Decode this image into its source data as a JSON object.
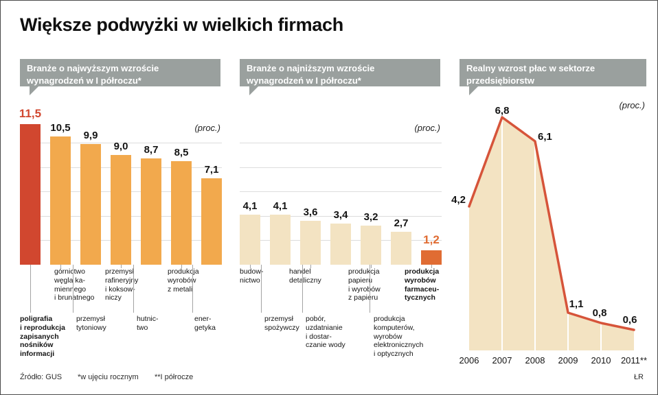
{
  "page": {
    "title": "Większe podwyżki w wielkich firmach"
  },
  "footer": {
    "source": "Źródło: GUS",
    "note_yearly": "*w ujęciu rocznym",
    "note_half": "**I półrocze",
    "credit": "ŁR"
  },
  "colors": {
    "badge_bg": "#9aa09e",
    "bar_orange": "#f2a94d",
    "bar_red": "#d1472f",
    "bar_cream": "#f3e3c2",
    "bar_highlight_orange": "#e06c33",
    "line_red": "#d6543a",
    "area_cream": "#f3e3c2",
    "grid": "#dcdcdc",
    "leader": "#a3a3a3"
  },
  "chart_data": [
    {
      "type": "bar",
      "title": "Branże o najwyższym wzroście wynagrodzeń w I półroczu*",
      "unit": "(proc.)",
      "categories": [
        "poligrafia i reprodukcja zapisanych nośników informacji",
        "górnictwo węgla kamiennego i brunatnego",
        "przemysł tytoniowy",
        "przemysł rafineryjny i koksowniczy",
        "hutnictwo",
        "produkcja wyrobów z metali",
        "energetyka"
      ],
      "display_labels": [
        "poligrafia\ni reprodukcja\nzapisanych\nnośników\ninformacji",
        "górnictwo\nwęgla ka-\nmiennego\ni brunatnego",
        "przemysł\ntytoniowy",
        "przemysł\nrafineryjny\ni koksow-\nniczy",
        "hutnic-\ntwo",
        "produkcja\nwyrobów\nz metali",
        "ener-\ngetyka"
      ],
      "values": [
        11.5,
        10.5,
        9.9,
        9.0,
        8.7,
        8.5,
        7.1
      ],
      "value_labels": [
        "11,5",
        "10,5",
        "9,9",
        "9,0",
        "8,7",
        "8,5",
        "7,1"
      ],
      "highlight_index": 0,
      "ylim": [
        0,
        12
      ],
      "grid_step": 2
    },
    {
      "type": "bar",
      "title": "Branże o najniższym wzroście wynagrodzeń w I półroczu*",
      "unit": "(proc.)",
      "categories": [
        "budownictwo",
        "przemysł spożywczy",
        "handel detaliczny",
        "pobór, uzdatnianie i dostarczanie wody",
        "produkcja papieru i wyrobów z papieru",
        "produkcja komputerów, wyrobów elektronicznych i optycznych",
        "produkcja wyrobów farmaceutycznych"
      ],
      "display_labels": [
        "budow-\nnictwo",
        "przemysł\nspożywczy",
        "handel\ndetaliczny",
        "pobór,\nuzdatnianie\ni dostar-\nczanie wody",
        "produkcja\npapieru\ni wyrobów\nz papieru",
        "produkcja\nkomputerów,\nwyrobów\nelektronicznych\ni optycznych",
        "produkcja\nwyrobów\nfarmaceu-\ntycznych"
      ],
      "values": [
        4.1,
        4.1,
        3.6,
        3.4,
        3.2,
        2.7,
        1.2
      ],
      "value_labels": [
        "4,1",
        "4,1",
        "3,6",
        "3,4",
        "3,2",
        "2,7",
        "1,2"
      ],
      "highlight_index": 6,
      "ylim": [
        0,
        12
      ],
      "grid_step": 2
    },
    {
      "type": "area",
      "title": "Realny wzrost płac w sektorze przedsiębiorstw",
      "unit": "(proc.)",
      "categories": [
        "2006",
        "2007",
        "2008",
        "2009",
        "2010",
        "2011**"
      ],
      "values": [
        4.2,
        6.8,
        6.1,
        1.1,
        0.8,
        0.6
      ],
      "value_labels": [
        "4,2",
        "6,8",
        "6,1",
        "1,1",
        "0,8",
        "0,6"
      ],
      "ylim": [
        0,
        7.4
      ]
    }
  ]
}
